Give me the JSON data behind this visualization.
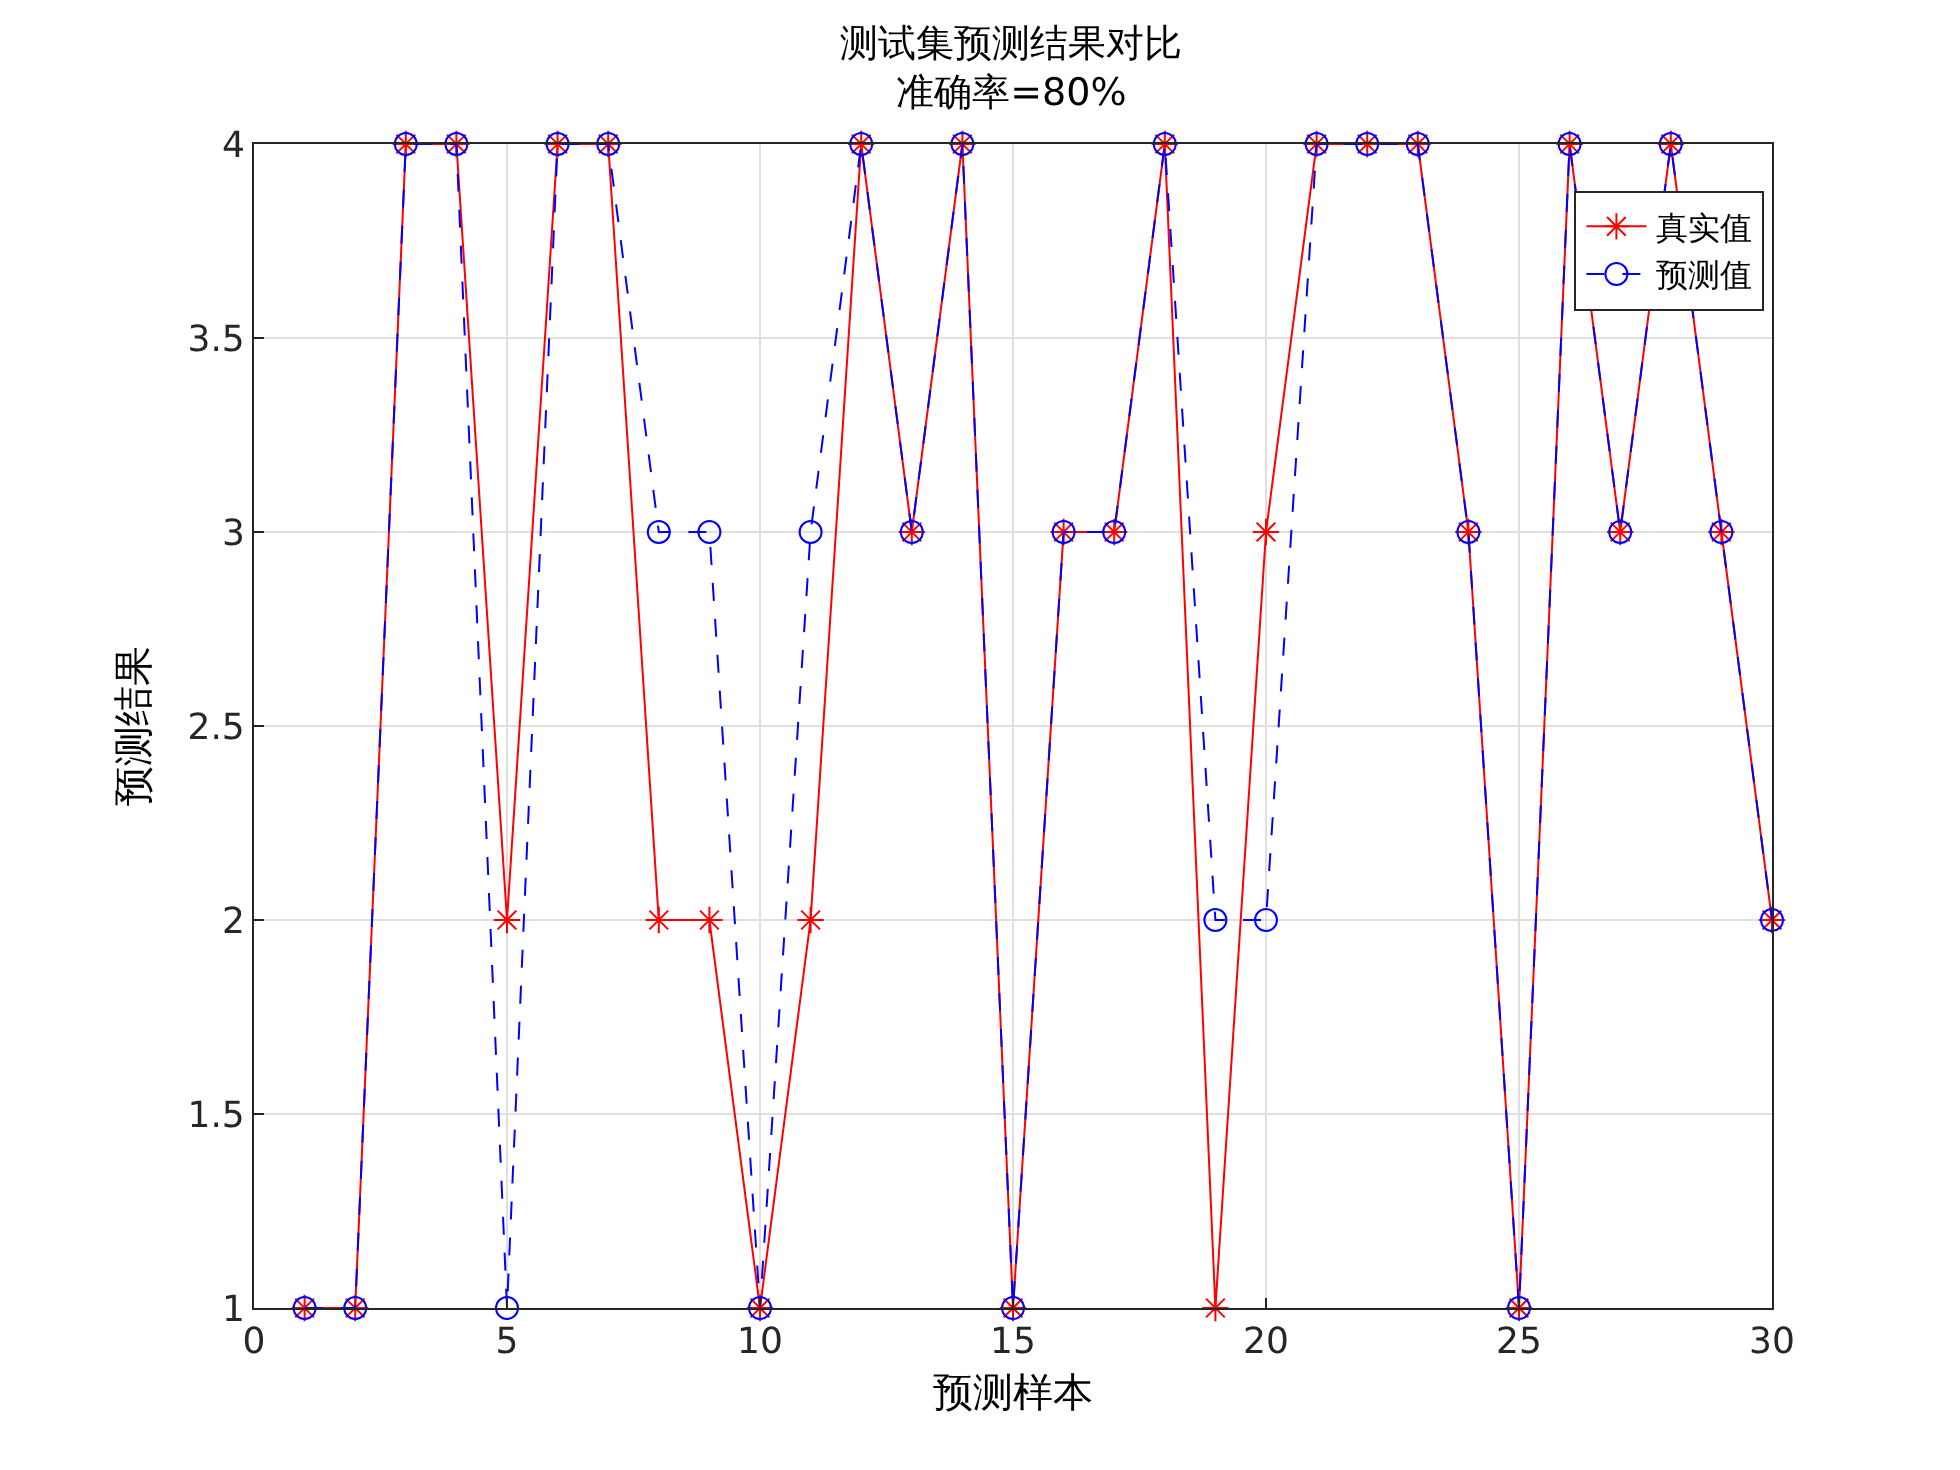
{
  "chart_data": {
    "type": "line",
    "title": "测试集预测结果对比",
    "subtitle": "准确率=80%",
    "xlabel": "预测样本",
    "ylabel": "预测结果",
    "x": [
      1,
      2,
      3,
      4,
      5,
      6,
      7,
      8,
      9,
      10,
      11,
      12,
      13,
      14,
      15,
      16,
      17,
      18,
      19,
      20,
      21,
      22,
      23,
      24,
      25,
      26,
      27,
      28,
      29,
      30
    ],
    "series": [
      {
        "name": "真实值",
        "color": "#ff0000",
        "marker": "cross",
        "line_style": "solid",
        "values": [
          1,
          1,
          4,
          4,
          2,
          4,
          4,
          2,
          2,
          1,
          2,
          4,
          3,
          4,
          1,
          3,
          3,
          4,
          1,
          3,
          4,
          4,
          4,
          3,
          1,
          4,
          3,
          4,
          3,
          2
        ]
      },
      {
        "name": "预测值",
        "color": "#0000ff",
        "marker": "circle",
        "line_style": "dashed",
        "values": [
          1,
          1,
          4,
          4,
          1,
          4,
          4,
          3,
          3,
          1,
          3,
          4,
          3,
          4,
          1,
          3,
          3,
          4,
          2,
          2,
          4,
          4,
          4,
          3,
          1,
          4,
          3,
          4,
          3,
          2
        ]
      }
    ],
    "xlim": [
      0,
      30
    ],
    "xticks": [
      0,
      5,
      10,
      15,
      20,
      25,
      30
    ],
    "ylim": [
      1,
      4
    ],
    "yticks": [
      1,
      1.5,
      2,
      2.5,
      3,
      3.5,
      4
    ],
    "grid": true,
    "legend": "top right"
  }
}
